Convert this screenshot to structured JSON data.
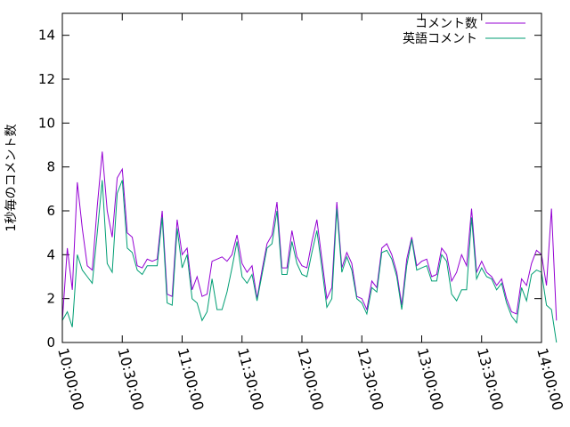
{
  "chart_data": {
    "type": "line",
    "ylabel": "1秒毎のコメント数",
    "xlabel": "",
    "title": "",
    "x_start": "10:00:00",
    "x_step_seconds": 150,
    "x_ticks": [
      "10:00:00",
      "10:30:00",
      "11:00:00",
      "11:30:00",
      "12:00:00",
      "12:30:00",
      "13:00:00",
      "13:30:00",
      "14:00:00"
    ],
    "xlim": [
      "10:00:00",
      "14:00:00"
    ],
    "y_ticks": [
      0,
      2,
      4,
      6,
      8,
      10,
      12,
      14
    ],
    "ylim": [
      0,
      15
    ],
    "grid": false,
    "legend_position": "top-right",
    "series": [
      {
        "name": "コメント数",
        "color": "#9400d3",
        "values": [
          1.0,
          4.3,
          2.4,
          7.3,
          5.2,
          3.5,
          3.3,
          6.2,
          8.7,
          6.0,
          4.8,
          7.5,
          7.9,
          5.0,
          4.8,
          3.5,
          3.4,
          3.8,
          3.7,
          3.8,
          6.0,
          2.2,
          2.1,
          5.6,
          4.0,
          4.3,
          2.4,
          3.0,
          2.1,
          2.2,
          3.7,
          3.8,
          3.9,
          3.7,
          4.0,
          4.9,
          3.6,
          3.2,
          3.5,
          2.0,
          3.3,
          4.5,
          4.9,
          6.4,
          3.4,
          3.4,
          5.1,
          3.9,
          3.5,
          3.4,
          4.6,
          5.6,
          3.8,
          2.0,
          2.5,
          6.4,
          3.4,
          4.1,
          3.6,
          2.1,
          2.0,
          1.5,
          2.8,
          2.5,
          4.3,
          4.5,
          4.0,
          3.2,
          1.7,
          3.8,
          4.8,
          3.5,
          3.7,
          3.8,
          3.0,
          3.1,
          4.3,
          4.0,
          2.8,
          3.2,
          4.0,
          3.5,
          6.1,
          3.2,
          3.7,
          3.2,
          3.0,
          2.6,
          2.9,
          2.0,
          1.4,
          1.3,
          2.9,
          2.6,
          3.6,
          4.2,
          4.0,
          2.6,
          6.1,
          1.0
        ]
      },
      {
        "name": "英語コメント",
        "color": "#009e73",
        "values": [
          1.0,
          1.4,
          0.7,
          4.0,
          3.3,
          3.0,
          2.7,
          5.0,
          7.4,
          3.6,
          3.2,
          6.8,
          7.4,
          4.3,
          4.1,
          3.3,
          3.1,
          3.5,
          3.5,
          3.5,
          5.7,
          1.8,
          1.7,
          5.2,
          3.4,
          4.0,
          2.0,
          1.8,
          1.0,
          1.4,
          2.9,
          1.5,
          1.5,
          2.3,
          3.4,
          4.6,
          3.0,
          2.7,
          3.1,
          1.9,
          3.1,
          4.3,
          4.5,
          6.0,
          3.1,
          3.1,
          4.6,
          3.6,
          3.1,
          3.0,
          4.1,
          5.1,
          3.4,
          1.6,
          2.0,
          6.1,
          3.2,
          3.9,
          3.3,
          2.0,
          1.8,
          1.3,
          2.5,
          2.3,
          4.1,
          4.2,
          3.8,
          3.0,
          1.5,
          3.5,
          4.7,
          3.3,
          3.4,
          3.5,
          2.8,
          2.8,
          4.0,
          3.7,
          2.2,
          1.9,
          2.4,
          2.4,
          5.7,
          2.9,
          3.4,
          3.0,
          2.9,
          2.4,
          2.7,
          1.8,
          1.2,
          0.9,
          2.5,
          1.9,
          3.1,
          3.3,
          3.2,
          1.7,
          1.5,
          0.0
        ]
      }
    ]
  }
}
